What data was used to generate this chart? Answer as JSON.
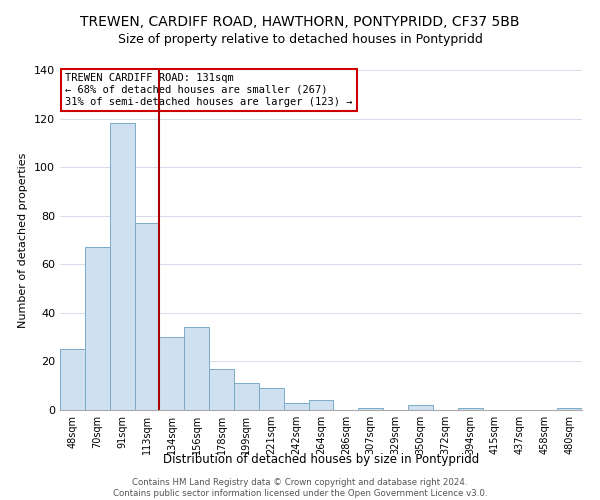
{
  "title": "TREWEN, CARDIFF ROAD, HAWTHORN, PONTYPRIDD, CF37 5BB",
  "subtitle": "Size of property relative to detached houses in Pontypridd",
  "xlabel": "Distribution of detached houses by size in Pontypridd",
  "ylabel": "Number of detached properties",
  "bar_labels": [
    "48sqm",
    "70sqm",
    "91sqm",
    "113sqm",
    "134sqm",
    "156sqm",
    "178sqm",
    "199sqm",
    "221sqm",
    "242sqm",
    "264sqm",
    "286sqm",
    "307sqm",
    "329sqm",
    "350sqm",
    "372sqm",
    "394sqm",
    "415sqm",
    "437sqm",
    "458sqm",
    "480sqm"
  ],
  "bar_values": [
    25,
    67,
    118,
    77,
    30,
    34,
    17,
    11,
    9,
    3,
    4,
    0,
    1,
    0,
    2,
    0,
    1,
    0,
    0,
    0,
    1
  ],
  "bar_color": "#cfe0f0",
  "bar_edge_color": "#7aaac8",
  "vline_color": "#aa0000",
  "vline_index": 4,
  "annotation_title": "TREWEN CARDIFF ROAD: 131sqm",
  "annotation_line1": "← 68% of detached houses are smaller (267)",
  "annotation_line2": "31% of semi-detached houses are larger (123) →",
  "annotation_box_color": "#ffffff",
  "annotation_box_edge": "#cc0000",
  "ylim": [
    0,
    140
  ],
  "yticks": [
    0,
    20,
    40,
    60,
    80,
    100,
    120,
    140
  ],
  "footer1": "Contains HM Land Registry data © Crown copyright and database right 2024.",
  "footer2": "Contains public sector information licensed under the Open Government Licence v3.0.",
  "bg_color": "#ffffff",
  "title_fontsize": 10,
  "subtitle_fontsize": 9
}
